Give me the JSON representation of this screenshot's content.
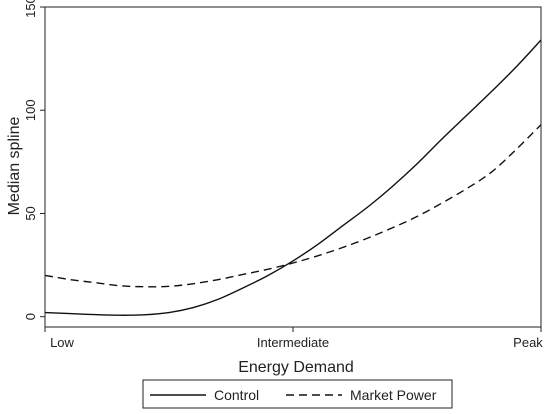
{
  "chart_data": {
    "type": "line",
    "title": "",
    "xlabel": "Energy Demand",
    "ylabel": "Median spline",
    "x_ticks": [
      "Low",
      "Intermediate",
      "Peak"
    ],
    "x": [
      0,
      0.05,
      0.1,
      0.15,
      0.2,
      0.25,
      0.3,
      0.35,
      0.4,
      0.45,
      0.5,
      0.55,
      0.6,
      0.65,
      0.7,
      0.75,
      0.8,
      0.85,
      0.9,
      0.95,
      1
    ],
    "xlim": [
      0,
      1
    ],
    "ylim": [
      -5,
      150
    ],
    "y_ticks": [
      0,
      50,
      100,
      150
    ],
    "grid": false,
    "legend_position": "bottom",
    "series": [
      {
        "name": "Control",
        "style": "solid",
        "values": [
          2,
          1.5,
          1,
          0.7,
          0.9,
          2,
          4.5,
          8.5,
          14,
          20,
          27,
          35,
          44,
          53,
          63,
          74,
          86,
          97.5,
          109,
          121,
          134
        ]
      },
      {
        "name": "Market Power",
        "style": "dashed",
        "values": [
          20,
          18,
          16.5,
          15,
          14.5,
          14.7,
          16,
          18,
          20.5,
          23,
          26,
          29.5,
          33.5,
          38,
          43,
          48.5,
          55,
          62,
          70,
          81,
          93
        ]
      }
    ]
  }
}
